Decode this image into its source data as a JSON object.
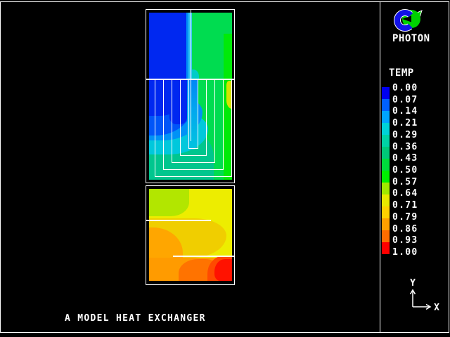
{
  "app": {
    "name": "PHOTON"
  },
  "colors": {
    "background": "#000000",
    "frame": "#FFFFFF",
    "text": "#FFFFFF"
  },
  "logo": {
    "label": "PHOTON",
    "sphere_color": "#00D200",
    "ring_color": "#1212E8"
  },
  "legend": {
    "title": "TEMP",
    "tick_labels": [
      "0.00",
      "0.07",
      "0.14",
      "0.21",
      "0.29",
      "0.36",
      "0.43",
      "0.50",
      "0.57",
      "0.64",
      "0.71",
      "0.79",
      "0.86",
      "0.93",
      "1.00"
    ],
    "band_colors": [
      "#0000F0",
      "#0060FF",
      "#00A4FF",
      "#00D2D8",
      "#00D2A4",
      "#00C878",
      "#00DC3C",
      "#00F000",
      "#A0E800",
      "#E8E800",
      "#FFD000",
      "#FFA000",
      "#FF6C00",
      "#FF0000"
    ]
  },
  "axis_indicator": {
    "y_label": "Y",
    "x_label": "X"
  },
  "caption": "A MODEL HEAT EXCHANGER"
}
